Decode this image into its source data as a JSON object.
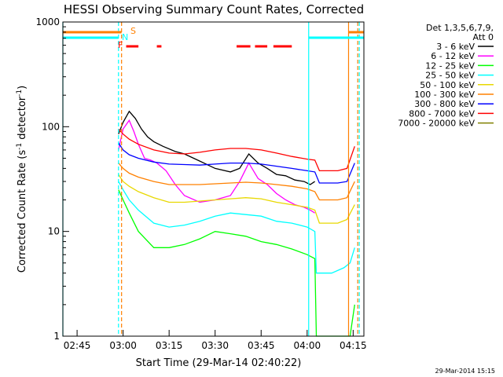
{
  "chart_data": {
    "type": "line",
    "title": "HESSI Observing Summary Count Rates, Corrected",
    "ylabel": "Corrected Count Rate (s⁻¹ detector⁻¹)",
    "ylabel_main": "Corrected Count Rate (s",
    "ylabel_sup1": "-1",
    "ylabel_mid": " detector",
    "ylabel_sup2": "-1",
    "ylabel_end": ")",
    "xlabel": "Start Time (29-Mar-14 02:40:22)",
    "y_scale": "log",
    "ylim": [
      1,
      1000
    ],
    "xlim": [
      "02:40:22",
      "04:18:30"
    ],
    "y_ticks": [
      {
        "value": 1,
        "label": "1"
      },
      {
        "value": 10,
        "label": "10"
      },
      {
        "value": 100,
        "label": "100"
      },
      {
        "value": 1000,
        "label": "1000"
      }
    ],
    "x_ticks": [
      {
        "value": "02:45",
        "label": "02:45"
      },
      {
        "value": "03:00",
        "label": "03:00"
      },
      {
        "value": "03:15",
        "label": "03:15"
      },
      {
        "value": "03:30",
        "label": "03:30"
      },
      {
        "value": "03:45",
        "label": "03:45"
      },
      {
        "value": "04:00",
        "label": "04:00"
      },
      {
        "value": "04:15",
        "label": "04:15"
      }
    ],
    "legend": {
      "title_line1": "Det 1,3,5,6,7,9,",
      "title_line2": "Att 0",
      "placement": "right"
    },
    "series": [
      {
        "name": "3 - 6 keV",
        "color": "#000000",
        "x": [
          "02:58:30",
          "03:00",
          "03:02",
          "03:04",
          "03:06",
          "03:08",
          "03:10",
          "03:13",
          "03:17",
          "03:20",
          "03:25",
          "03:30",
          "03:35",
          "03:38",
          "03:41",
          "03:44",
          "03:47",
          "03:50",
          "03:53",
          "03:56",
          "03:59",
          "04:01",
          "04:02:30"
        ],
        "y": [
          85,
          110,
          140,
          120,
          95,
          80,
          72,
          65,
          58,
          55,
          47,
          40,
          37,
          40,
          55,
          45,
          40,
          35,
          34,
          31,
          30,
          28,
          30
        ]
      },
      {
        "name": "6 - 12 keV",
        "color": "#ff00ff",
        "x": [
          "02:58:30",
          "03:00",
          "03:02",
          "03:03:30",
          "03:05",
          "03:07",
          "03:09",
          "03:11",
          "03:14",
          "03:17",
          "03:20",
          "03:25",
          "03:30",
          "03:35",
          "03:38",
          "03:41",
          "03:44",
          "03:47",
          "03:50",
          "03:53",
          "03:56",
          "03:59",
          "04:01",
          "04:02:30"
        ],
        "y": [
          60,
          95,
          115,
          90,
          68,
          50,
          48,
          45,
          38,
          28,
          22,
          19,
          20,
          22,
          30,
          45,
          32,
          28,
          23,
          20,
          18,
          17,
          16,
          15
        ]
      },
      {
        "name": "12 - 25 keV",
        "color": "#00ff00",
        "x": [
          "02:58:30",
          "03:00",
          "03:02",
          "03:05",
          "03:10",
          "03:15",
          "03:20",
          "03:25",
          "03:30",
          "03:35",
          "03:40",
          "03:45",
          "03:50",
          "03:55",
          "04:00",
          "04:02:30",
          "04:03",
          "04:10",
          "04:12",
          "04:14",
          "04:15:30"
        ],
        "y": [
          25,
          20,
          15,
          10,
          7,
          7,
          7.5,
          8.5,
          10,
          9.5,
          9,
          8,
          7.5,
          6.8,
          6,
          5.5,
          1,
          1,
          1,
          1,
          2
        ]
      },
      {
        "name": "25 - 50 keV",
        "color": "#00ffff",
        "x": [
          "02:58:30",
          "03:00",
          "03:02",
          "03:05",
          "03:10",
          "03:15",
          "03:20",
          "03:25",
          "03:30",
          "03:35",
          "03:40",
          "03:45",
          "03:50",
          "03:55",
          "04:00",
          "04:02:30",
          "04:03",
          "04:08",
          "04:12",
          "04:14",
          "04:15:30"
        ],
        "y": [
          30,
          25,
          20,
          16,
          12,
          11,
          11.5,
          12.5,
          14,
          15,
          14.5,
          14,
          12.5,
          12,
          11,
          10,
          4,
          4,
          4.5,
          5,
          7
        ]
      },
      {
        "name": "50 - 100 keV",
        "color": "#e8d800",
        "x": [
          "02:58:30",
          "03:00",
          "03:02",
          "03:05",
          "03:10",
          "03:15",
          "03:20",
          "03:25",
          "03:30",
          "03:35",
          "03:40",
          "03:45",
          "03:50",
          "03:55",
          "04:00",
          "04:02:30",
          "04:04",
          "04:10",
          "04:13",
          "04:15:30"
        ],
        "y": [
          35,
          30,
          27,
          24,
          21,
          19,
          19,
          19.5,
          20,
          20.5,
          21,
          20.5,
          19,
          18,
          17,
          16,
          12,
          12,
          13,
          18
        ]
      },
      {
        "name": "100 - 300 keV",
        "color": "#ff8000",
        "x": [
          "02:58:30",
          "03:00",
          "03:02",
          "03:05",
          "03:10",
          "03:15",
          "03:20",
          "03:25",
          "03:30",
          "03:35",
          "03:40",
          "03:45",
          "03:50",
          "03:55",
          "04:00",
          "04:02:30",
          "04:04",
          "04:10",
          "04:13",
          "04:15:30"
        ],
        "y": [
          45,
          40,
          36,
          33,
          30,
          28,
          28,
          28,
          28.5,
          29,
          29.5,
          29,
          28,
          27,
          25.5,
          24,
          20,
          20,
          21,
          30
        ]
      },
      {
        "name": "300 - 800 keV",
        "color": "#0000ff",
        "x": [
          "02:58:30",
          "03:00",
          "03:02",
          "03:05",
          "03:10",
          "03:15",
          "03:20",
          "03:25",
          "03:30",
          "03:35",
          "03:40",
          "03:45",
          "03:50",
          "03:55",
          "04:00",
          "04:02:30",
          "04:04",
          "04:10",
          "04:13",
          "04:15:30"
        ],
        "y": [
          70,
          60,
          54,
          50,
          46,
          44,
          43.5,
          43,
          44,
          45,
          45,
          44,
          42,
          40,
          38,
          37,
          29,
          29,
          30,
          45
        ]
      },
      {
        "name": "800 - 7000 keV",
        "color": "#ff0000",
        "x": [
          "02:58:30",
          "03:00",
          "03:02",
          "03:05",
          "03:10",
          "03:15",
          "03:20",
          "03:25",
          "03:30",
          "03:35",
          "03:40",
          "03:45",
          "03:50",
          "03:55",
          "04:00",
          "04:02:30",
          "04:04",
          "04:10",
          "04:13",
          "04:15:30"
        ],
        "y": [
          95,
          85,
          76,
          68,
          60,
          56,
          55,
          57,
          60,
          62,
          62,
          60,
          56,
          52,
          49,
          48,
          38,
          38,
          40,
          65
        ]
      },
      {
        "name": "7000 - 20000 keV",
        "color": "#808000",
        "x": [],
        "y": []
      }
    ],
    "annotations": [
      {
        "label": "S",
        "color": "#ff8000"
      },
      {
        "label": "N",
        "color": "#00ffff"
      },
      {
        "label": "F",
        "color": "#ff0000"
      }
    ],
    "state_bars": [
      {
        "name": "S",
        "color": "#ff8000",
        "segments": [
          [
            "02:40:22",
            "02:59:30"
          ],
          [
            "04:13:30",
            "04:18:30"
          ]
        ]
      },
      {
        "name": "N",
        "color": "#00ffff",
        "segments": [
          [
            "02:40:22",
            "02:58:30"
          ],
          [
            "04:00:30",
            "04:18:30"
          ]
        ]
      },
      {
        "name": "F",
        "color": "#ff0000",
        "segments": [
          [
            "03:01",
            "03:05"
          ],
          [
            "03:11",
            "03:12:30"
          ],
          [
            "03:37",
            "03:41:30"
          ],
          [
            "03:43",
            "03:47"
          ],
          [
            "03:49",
            "03:55"
          ]
        ]
      }
    ],
    "vertical_lines": [
      {
        "time": "02:58:30",
        "color": "#00ffff",
        "style": "dashed"
      },
      {
        "time": "02:59:30",
        "color": "#ff8000",
        "style": "dashed"
      },
      {
        "time": "04:00:30",
        "color": "#00ffff",
        "style": "solid"
      },
      {
        "time": "04:13:30",
        "color": "#ff8000",
        "style": "solid"
      },
      {
        "time": "04:16:30",
        "color": "#ff8000",
        "style": "dashed"
      },
      {
        "time": "04:17",
        "color": "#00ffff",
        "style": "dashed"
      },
      {
        "time": "02:40:22",
        "color": "#00ffff",
        "style": "solid"
      }
    ],
    "grid": false
  },
  "timestamp": "29-Mar-2014 15:15"
}
